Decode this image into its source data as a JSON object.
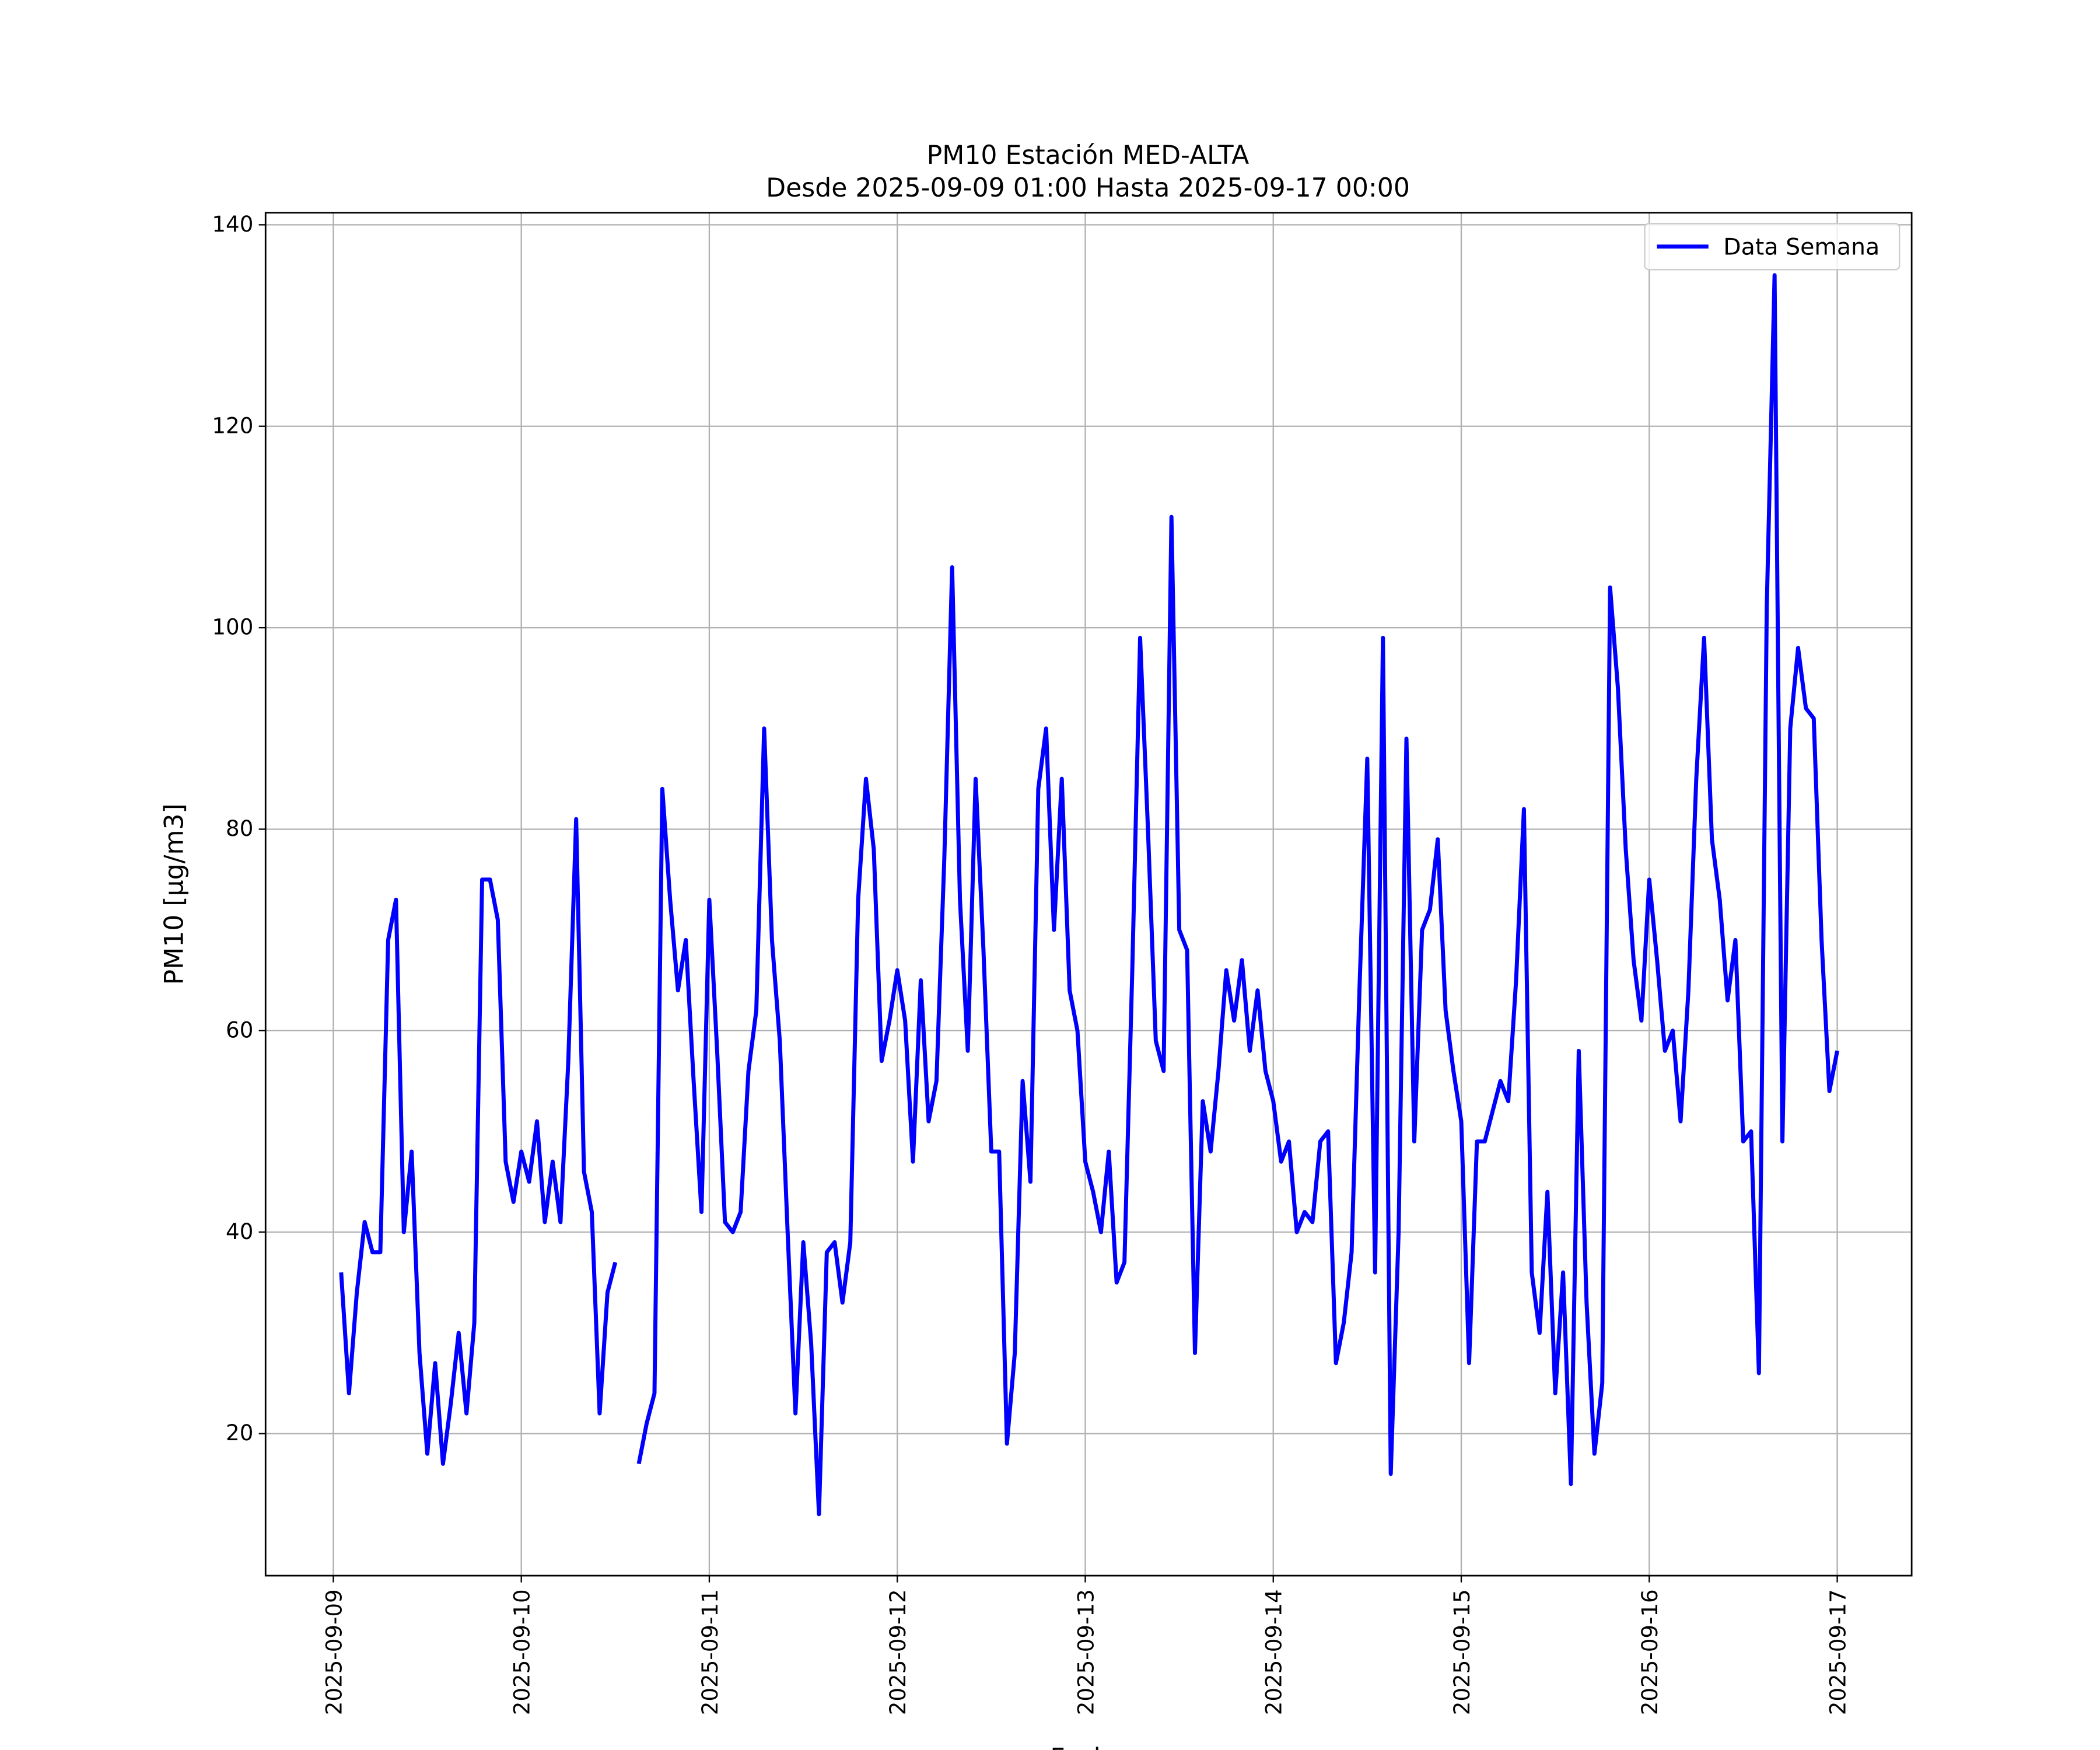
{
  "chart_data": {
    "type": "line",
    "title": "PM10 Estación MED-ALTA",
    "subtitle": "Desde 2025-09-09 01:00 Hasta 2025-09-17 00:00",
    "x_label": "Fecha",
    "y_label": "PM10 [μg/m3]",
    "xlim": [
      "2025-09-08 15:21",
      "2025-09-17 09:30"
    ],
    "xticks": [
      "2025-09-09",
      "2025-09-10",
      "2025-09-11",
      "2025-09-12",
      "2025-09-13",
      "2025-09-14",
      "2025-09-15",
      "2025-09-16",
      "2025-09-17"
    ],
    "ylim": [
      5.9,
      141.2
    ],
    "yticks": [
      20,
      40,
      60,
      80,
      100,
      120,
      140
    ],
    "grid": true,
    "legend": "upper right",
    "x": [
      "2025-09-09 01:00",
      "2025-09-09 02:00",
      "2025-09-09 03:00",
      "2025-09-09 04:00",
      "2025-09-09 05:00",
      "2025-09-09 06:00",
      "2025-09-09 07:00",
      "2025-09-09 08:00",
      "2025-09-09 09:00",
      "2025-09-09 10:00",
      "2025-09-09 11:00",
      "2025-09-09 12:00",
      "2025-09-09 13:00",
      "2025-09-09 14:00",
      "2025-09-09 15:00",
      "2025-09-09 16:00",
      "2025-09-09 17:00",
      "2025-09-09 18:00",
      "2025-09-09 19:00",
      "2025-09-09 20:00",
      "2025-09-09 21:00",
      "2025-09-09 22:00",
      "2025-09-09 23:00",
      "2025-09-10 00:00",
      "2025-09-10 01:00",
      "2025-09-10 02:00",
      "2025-09-10 03:00",
      "2025-09-10 04:00",
      "2025-09-10 05:00",
      "2025-09-10 06:00",
      "2025-09-10 07:00",
      "2025-09-10 08:00",
      "2025-09-10 09:00",
      "2025-09-10 10:00",
      "2025-09-10 11:00",
      "2025-09-10 12:00",
      "2025-09-10 13:00",
      "2025-09-10 14:00",
      "2025-09-10 15:00",
      "2025-09-10 16:00",
      "2025-09-10 17:00",
      "2025-09-10 18:00",
      "2025-09-10 19:00",
      "2025-09-10 20:00",
      "2025-09-10 21:00",
      "2025-09-10 22:00",
      "2025-09-10 23:00",
      "2025-09-11 00:00",
      "2025-09-11 01:00",
      "2025-09-11 02:00",
      "2025-09-11 03:00",
      "2025-09-11 04:00",
      "2025-09-11 05:00",
      "2025-09-11 06:00",
      "2025-09-11 07:00",
      "2025-09-11 08:00",
      "2025-09-11 09:00",
      "2025-09-11 10:00",
      "2025-09-11 11:00",
      "2025-09-11 12:00",
      "2025-09-11 13:00",
      "2025-09-11 14:00",
      "2025-09-11 15:00",
      "2025-09-11 16:00",
      "2025-09-11 17:00",
      "2025-09-11 18:00",
      "2025-09-11 19:00",
      "2025-09-11 20:00",
      "2025-09-11 21:00",
      "2025-09-11 22:00",
      "2025-09-11 23:00",
      "2025-09-12 00:00",
      "2025-09-12 01:00",
      "2025-09-12 02:00",
      "2025-09-12 03:00",
      "2025-09-12 04:00",
      "2025-09-12 05:00",
      "2025-09-12 06:00",
      "2025-09-12 07:00",
      "2025-09-12 08:00",
      "2025-09-12 09:00",
      "2025-09-12 10:00",
      "2025-09-12 11:00",
      "2025-09-12 12:00",
      "2025-09-12 13:00",
      "2025-09-12 14:00",
      "2025-09-12 15:00",
      "2025-09-12 16:00",
      "2025-09-12 17:00",
      "2025-09-12 18:00",
      "2025-09-12 19:00",
      "2025-09-12 20:00",
      "2025-09-12 21:00",
      "2025-09-12 22:00",
      "2025-09-12 23:00",
      "2025-09-13 00:00",
      "2025-09-13 01:00",
      "2025-09-13 02:00",
      "2025-09-13 03:00",
      "2025-09-13 04:00",
      "2025-09-13 05:00",
      "2025-09-13 06:00",
      "2025-09-13 07:00",
      "2025-09-13 08:00",
      "2025-09-13 09:00",
      "2025-09-13 10:00",
      "2025-09-13 11:00",
      "2025-09-13 12:00",
      "2025-09-13 13:00",
      "2025-09-13 14:00",
      "2025-09-13 15:00",
      "2025-09-13 16:00",
      "2025-09-13 17:00",
      "2025-09-13 18:00",
      "2025-09-13 19:00",
      "2025-09-13 20:00",
      "2025-09-13 21:00",
      "2025-09-13 22:00",
      "2025-09-13 23:00",
      "2025-09-14 00:00",
      "2025-09-14 01:00",
      "2025-09-14 02:00",
      "2025-09-14 03:00",
      "2025-09-14 04:00",
      "2025-09-14 05:00",
      "2025-09-14 06:00",
      "2025-09-14 07:00",
      "2025-09-14 08:00",
      "2025-09-14 09:00",
      "2025-09-14 10:00",
      "2025-09-14 11:00",
      "2025-09-14 12:00",
      "2025-09-14 13:00",
      "2025-09-14 14:00",
      "2025-09-14 15:00",
      "2025-09-14 16:00",
      "2025-09-14 17:00",
      "2025-09-14 18:00",
      "2025-09-14 19:00",
      "2025-09-14 20:00",
      "2025-09-14 21:00",
      "2025-09-14 22:00",
      "2025-09-14 23:00",
      "2025-09-15 00:00",
      "2025-09-15 01:00",
      "2025-09-15 02:00",
      "2025-09-15 03:00",
      "2025-09-15 04:00",
      "2025-09-15 05:00",
      "2025-09-15 06:00",
      "2025-09-15 07:00",
      "2025-09-15 08:00",
      "2025-09-15 09:00",
      "2025-09-15 10:00",
      "2025-09-15 11:00",
      "2025-09-15 12:00",
      "2025-09-15 13:00",
      "2025-09-15 14:00",
      "2025-09-15 15:00",
      "2025-09-15 16:00",
      "2025-09-15 17:00",
      "2025-09-15 18:00",
      "2025-09-15 19:00",
      "2025-09-15 20:00",
      "2025-09-15 21:00",
      "2025-09-15 22:00",
      "2025-09-15 23:00",
      "2025-09-16 00:00",
      "2025-09-16 01:00",
      "2025-09-16 02:00",
      "2025-09-16 03:00",
      "2025-09-16 04:00",
      "2025-09-16 05:00",
      "2025-09-16 06:00",
      "2025-09-16 07:00",
      "2025-09-16 08:00",
      "2025-09-16 09:00",
      "2025-09-16 10:00",
      "2025-09-16 11:00",
      "2025-09-16 12:00",
      "2025-09-16 13:00",
      "2025-09-16 14:00",
      "2025-09-16 15:00",
      "2025-09-16 16:00",
      "2025-09-16 17:00",
      "2025-09-16 18:00",
      "2025-09-16 19:00",
      "2025-09-16 20:00",
      "2025-09-16 21:00",
      "2025-09-16 22:00",
      "2025-09-16 23:00",
      "2025-09-17 00:00"
    ],
    "series": [
      {
        "name": "Data Semana",
        "color": "#0000ff",
        "values": [
          36,
          24,
          34,
          41,
          38,
          38,
          69,
          73,
          40,
          48,
          28,
          18,
          27,
          17,
          23,
          30,
          22,
          31,
          75,
          75,
          71,
          47,
          43,
          48,
          45,
          51,
          41,
          47,
          41,
          57,
          81,
          46,
          42,
          22,
          34,
          37,
          null,
          null,
          17,
          21,
          24,
          84,
          73,
          64,
          69,
          55,
          42,
          73,
          58,
          41,
          40,
          42,
          56,
          62,
          90,
          69,
          59,
          40,
          22,
          39,
          29,
          12,
          38,
          39,
          33,
          39,
          73,
          85,
          78,
          57,
          61,
          66,
          61,
          47,
          65,
          51,
          55,
          77,
          106,
          73,
          58,
          85,
          68,
          48,
          48,
          19,
          28,
          55,
          45,
          84,
          90,
          70,
          85,
          64,
          60,
          47,
          44,
          40,
          48,
          35,
          37,
          66,
          99,
          80,
          59,
          56,
          111,
          70,
          68,
          28,
          53,
          48,
          56,
          66,
          61,
          67,
          58,
          64,
          56,
          53,
          47,
          49,
          40,
          42,
          41,
          49,
          50,
          27,
          31,
          38,
          64,
          87,
          36,
          99,
          16,
          40,
          89,
          49,
          70,
          72,
          79,
          62,
          56,
          51,
          27,
          49,
          49,
          52,
          55,
          53,
          65,
          82,
          36,
          30,
          44,
          24,
          36,
          15,
          58,
          33,
          18,
          25,
          104,
          94,
          78,
          67,
          61,
          75,
          67,
          58,
          60,
          51,
          64,
          85,
          99,
          79,
          73,
          63,
          69,
          49,
          50,
          26,
          102,
          135,
          49,
          90,
          98,
          92,
          91,
          69,
          54,
          58
        ]
      }
    ]
  }
}
